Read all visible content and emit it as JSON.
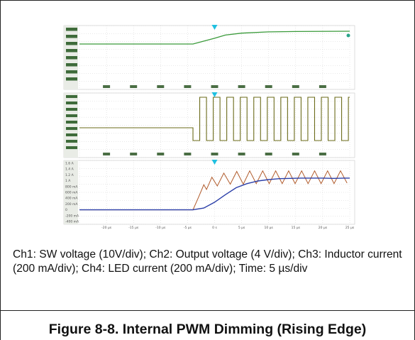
{
  "caption": "Ch1: SW voltage (10V/div); Ch2: Output voltage (4 V/div); Ch3: Inductor current (200 mA/div); Ch4: LED current (200 mA/div); Time: 5 µs/div",
  "figure_title": "Figure 8-8. Internal PWM Dimming (Rising Edge)",
  "colors": {
    "output_voltage": "#3a9a3a",
    "sw_voltage": "#6b6b1a",
    "inductor_current": "#b05a2a",
    "led_current": "#2a3ea8",
    "trigger": "#20c0e0"
  },
  "chart_data": [
    {
      "type": "line",
      "panel": "top",
      "x_unit": "µs",
      "xlim": [
        -25,
        25
      ],
      "series": [
        {
          "values_x": [
            -25,
            -4,
            0,
            2,
            5,
            10,
            15,
            25
          ],
          "values_y": [
            0.0,
            0.0,
            0.45,
            0.7,
            0.85,
            0.95,
            0.98,
            1.0
          ]
        }
      ]
    },
    {
      "type": "line",
      "panel": "middle",
      "x_unit": "µs",
      "xlim": [
        -25,
        25
      ],
      "series": [
        {
          "pattern": "switching",
          "flat_until_x": -4,
          "flat_level": 0.5,
          "period_us": 2.5,
          "duty": 0.5
        }
      ]
    },
    {
      "type": "line",
      "panel": "bottom",
      "x_unit": "µs",
      "xlim": [
        -25,
        25
      ],
      "ylim": [
        -400,
        1600
      ],
      "y_tick_labels": [
        "1.6 A",
        "1.4 A",
        "1.2 A",
        "1 A",
        "800 mA",
        "600 mA",
        "400 mA",
        "200 mA",
        "0",
        "-200 mA",
        "-400 mA"
      ],
      "y_tick_values": [
        1600,
        1400,
        1200,
        1000,
        800,
        600,
        400,
        200,
        0,
        -200,
        -400
      ],
      "x_tick_labels": [
        "-20 µs",
        "-15 µs",
        "-10 µs",
        "-5 µs",
        "0 s",
        "5 µs",
        "10 µs",
        "15 µs",
        "20 µs",
        "25 µs"
      ],
      "x_tick_values": [
        -20,
        -15,
        -10,
        -5,
        0,
        5,
        10,
        15,
        20,
        25
      ],
      "series": [
        {
          "key": "inductor",
          "values_x": [
            -25,
            -4,
            -3,
            -2,
            -1.5,
            -0.5,
            0.5,
            1.7,
            2.9,
            4.1,
            5.3,
            6.5,
            7.7,
            8.9,
            10.1,
            11.3,
            12.5,
            13.7,
            14.9,
            16.1,
            17.3,
            18.5,
            19.7,
            20.9,
            22.1,
            23.3,
            24.5
          ],
          "values_y": [
            0,
            0,
            420,
            860,
            700,
            1120,
            820,
            1260,
            880,
            1320,
            880,
            1340,
            900,
            1340,
            900,
            1340,
            900,
            1340,
            900,
            1340,
            900,
            1340,
            900,
            1340,
            900,
            1340,
            920
          ]
        },
        {
          "key": "led",
          "values_x": [
            -25,
            -4,
            -2,
            0,
            2,
            4,
            6,
            8,
            10,
            12,
            14,
            16,
            18,
            20,
            22,
            24,
            25
          ],
          "values_y": [
            0,
            0,
            60,
            260,
            520,
            760,
            900,
            990,
            1040,
            1070,
            1080,
            1090,
            1090,
            1090,
            1080,
            1090,
            1090
          ]
        }
      ]
    }
  ]
}
